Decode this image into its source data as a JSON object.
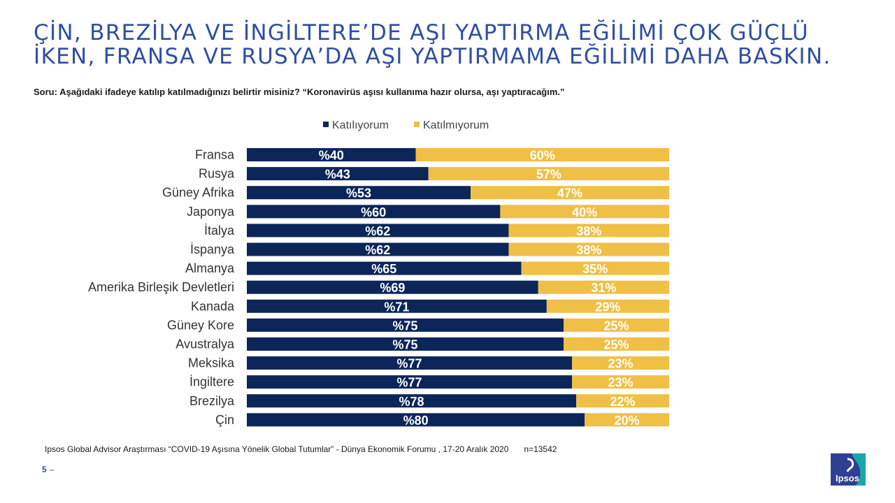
{
  "title": {
    "line1": "ÇİN, BREZİLYA VE İNGİLTERE’DE AŞI YAPTIRMA EĞİLİMİ ÇOK GÜÇLÜ",
    "line2": "İKEN, FRANSA VE RUSYA’DA AŞI YAPTIRMAMA EĞİLİMİ DAHA BASKIN."
  },
  "question": "Soru: Aşağıdaki ifadeye katılıp katılmadığınızı belirtir misiniz? “Koronavirüs aşısı kullanıma hazır olursa, aşı yaptıracağım.”",
  "footnote": {
    "source": "Ipsos Global Advisor Araştırması “COVID-19 Aşısına Yönelik Global Tutumlar” - Dünya Ekonomik Forumu , 17-20 Aralık 2020",
    "n": "n=13542"
  },
  "page_number": "5",
  "page_dash": "–",
  "logo_text": "Ipsos",
  "colors": {
    "agree": "#0c2659",
    "disagree": "#f0bf45",
    "title": "#2f4fa2",
    "logo": "#2f3f93",
    "logo_accent": "#19a9a5"
  },
  "chart_data": {
    "type": "bar",
    "orientation": "horizontal",
    "stacked": true,
    "legend_position": "top",
    "categories": [
      "Fransa",
      "Rusya",
      "Güney Afrika",
      "Japonya",
      "İtalya",
      "İspanya",
      "Almanya",
      "Amerika Birleşik Devletleri",
      "Kanada",
      "Güney Kore",
      "Avustralya",
      "Meksika",
      "İngiltere",
      "Brezilya",
      "Çin"
    ],
    "series": [
      {
        "name": "Katılıyorum",
        "values": [
          40,
          43,
          53,
          60,
          62,
          62,
          65,
          69,
          71,
          75,
          75,
          77,
          77,
          78,
          80
        ],
        "labels": [
          "%40",
          "%43",
          "%53",
          "%60",
          "%62",
          "%62",
          "%65",
          "%69",
          "%71",
          "%75",
          "%75",
          "%77",
          "%77",
          "%78",
          "%80"
        ]
      },
      {
        "name": "Katılmıyorum",
        "values": [
          60,
          57,
          47,
          40,
          38,
          38,
          35,
          31,
          29,
          25,
          25,
          23,
          23,
          22,
          20
        ],
        "labels": [
          "60%",
          "57%",
          "47%",
          "40%",
          "38%",
          "38%",
          "35%",
          "31%",
          "29%",
          "25%",
          "25%",
          "23%",
          "23%",
          "22%",
          "20%"
        ]
      }
    ],
    "xlim": [
      0,
      100
    ]
  }
}
